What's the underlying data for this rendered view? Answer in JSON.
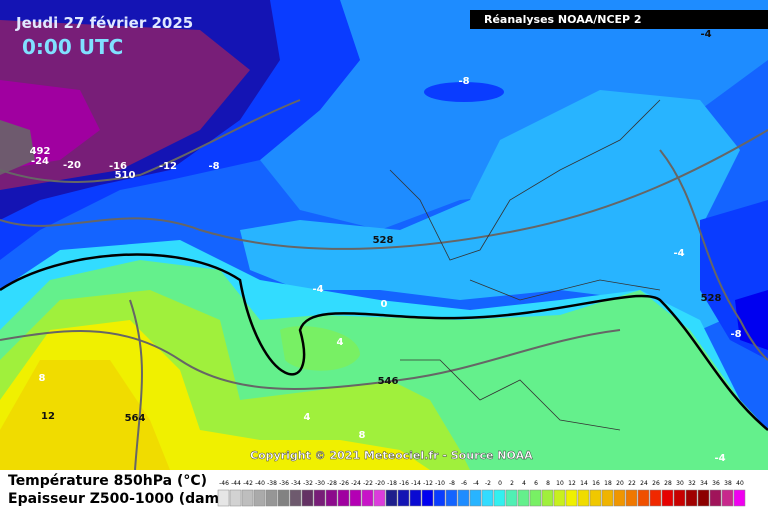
{
  "header": {
    "date": "Jeudi 27 février 2025",
    "time": "0:00 UTC",
    "source": "Réanalyses NOAA/NCEP 2"
  },
  "contour_labels": [
    "-4",
    "-8",
    "492",
    "-24",
    "-20",
    "-16",
    "510",
    "-12",
    "-8",
    "528",
    "-4",
    "0",
    "4",
    "8",
    "12",
    "564",
    "546",
    "4",
    "8",
    "528",
    "-8",
    "-4",
    "-4"
  ],
  "copyright": "Copyright © 2021 Meteociel.fr - Source NOAA",
  "legend": {
    "title_temperature": "Température 850hPa (°C)",
    "title_thickness": "Epaisseur Z500-1000 (dam)",
    "scale": [
      {
        "label": "-46",
        "color": "#e6e6e6"
      },
      {
        "label": "-44",
        "color": "#d2d2d2"
      },
      {
        "label": "-42",
        "color": "#bebebe"
      },
      {
        "label": "-40",
        "color": "#aaaaaa"
      },
      {
        "label": "-38",
        "color": "#969696"
      },
      {
        "label": "-36",
        "color": "#828282"
      },
      {
        "label": "-34",
        "color": "#6e5a6e"
      },
      {
        "label": "-32",
        "color": "#643264"
      },
      {
        "label": "-30",
        "color": "#781e78"
      },
      {
        "label": "-28",
        "color": "#8c0a8c"
      },
      {
        "label": "-26",
        "color": "#a000a0"
      },
      {
        "label": "-24",
        "color": "#b400b4"
      },
      {
        "label": "-22",
        "color": "#c814c8"
      },
      {
        "label": "-20",
        "color": "#dc3cdc"
      },
      {
        "label": "-18",
        "color": "#1e1e8c"
      },
      {
        "label": "-16",
        "color": "#1414b4"
      },
      {
        "label": "-14",
        "color": "#0a0ad2"
      },
      {
        "label": "-12",
        "color": "#0000f0"
      },
      {
        "label": "-10",
        "color": "#0a3cff"
      },
      {
        "label": "-8",
        "color": "#1464ff"
      },
      {
        "label": "-6",
        "color": "#1e8cff"
      },
      {
        "label": "-4",
        "color": "#28b4ff"
      },
      {
        "label": "-2",
        "color": "#32dcff"
      },
      {
        "label": "0",
        "color": "#32f0f0"
      },
      {
        "label": "2",
        "color": "#50f0b4"
      },
      {
        "label": "4",
        "color": "#64f08c"
      },
      {
        "label": "6",
        "color": "#78f064"
      },
      {
        "label": "8",
        "color": "#a0f03c"
      },
      {
        "label": "10",
        "color": "#c8f01e"
      },
      {
        "label": "12",
        "color": "#f0f000"
      },
      {
        "label": "14",
        "color": "#f0dc00"
      },
      {
        "label": "16",
        "color": "#f0c800"
      },
      {
        "label": "18",
        "color": "#f0b400"
      },
      {
        "label": "20",
        "color": "#f09600"
      },
      {
        "label": "22",
        "color": "#f07800"
      },
      {
        "label": "24",
        "color": "#f05000"
      },
      {
        "label": "26",
        "color": "#f02800"
      },
      {
        "label": "28",
        "color": "#e60000"
      },
      {
        "label": "30",
        "color": "#c80000"
      },
      {
        "label": "32",
        "color": "#a00000"
      },
      {
        "label": "34",
        "color": "#8c0000"
      },
      {
        "label": "36",
        "color": "#a0145a"
      },
      {
        "label": "38",
        "color": "#c8288c"
      },
      {
        "label": "40",
        "color": "#f000f0"
      }
    ]
  }
}
